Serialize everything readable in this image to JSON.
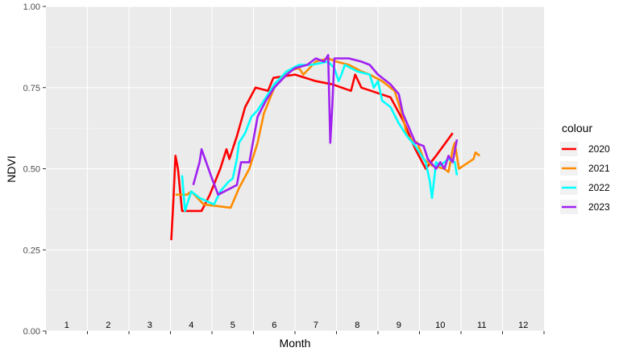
{
  "chart_data": {
    "type": "line",
    "xlabel": "Month",
    "ylabel": "NDVI",
    "ylim": [
      0,
      1
    ],
    "yticks": [
      0,
      0.25,
      0.5,
      0.75,
      1
    ],
    "ytick_labels": [
      "0.00",
      "0.25",
      "0.50",
      "0.75",
      "1.00"
    ],
    "month_labels": [
      "1",
      "2",
      "3",
      "4",
      "5",
      "6",
      "7",
      "8",
      "9",
      "10",
      "11",
      "12"
    ],
    "xlim": [
      0.5,
      12.5
    ],
    "grid": true,
    "background": "#ebebeb",
    "legend": {
      "title": "colour",
      "placement": "right"
    },
    "series": [
      {
        "name": "2020",
        "color": "#ff0000",
        "points": [
          [
            3.52,
            0.28
          ],
          [
            3.57,
            0.4
          ],
          [
            3.62,
            0.54
          ],
          [
            3.68,
            0.5
          ],
          [
            3.78,
            0.37
          ],
          [
            4.0,
            0.37
          ],
          [
            4.25,
            0.37
          ],
          [
            4.45,
            0.42
          ],
          [
            4.7,
            0.5
          ],
          [
            4.85,
            0.56
          ],
          [
            4.92,
            0.53
          ],
          [
            5.1,
            0.6
          ],
          [
            5.3,
            0.69
          ],
          [
            5.55,
            0.75
          ],
          [
            5.85,
            0.74
          ],
          [
            5.98,
            0.78
          ],
          [
            6.5,
            0.79
          ],
          [
            7.0,
            0.77
          ],
          [
            7.4,
            0.76
          ],
          [
            7.85,
            0.74
          ],
          [
            7.95,
            0.79
          ],
          [
            8.1,
            0.75
          ],
          [
            8.8,
            0.72
          ],
          [
            9.1,
            0.65
          ],
          [
            9.4,
            0.56
          ],
          [
            9.65,
            0.5
          ],
          [
            9.9,
            0.54
          ],
          [
            10.3,
            0.61
          ]
        ]
      },
      {
        "name": "2021",
        "color": "#ff8c00",
        "points": [
          [
            3.62,
            0.42
          ],
          [
            3.9,
            0.42
          ],
          [
            4.0,
            0.43
          ],
          [
            4.3,
            0.39
          ],
          [
            4.95,
            0.38
          ],
          [
            5.15,
            0.44
          ],
          [
            5.4,
            0.5
          ],
          [
            5.6,
            0.58
          ],
          [
            5.75,
            0.67
          ],
          [
            6.0,
            0.75
          ],
          [
            6.3,
            0.8
          ],
          [
            6.6,
            0.81
          ],
          [
            6.7,
            0.79
          ],
          [
            7.0,
            0.83
          ],
          [
            7.3,
            0.84
          ],
          [
            7.5,
            0.83
          ],
          [
            7.8,
            0.82
          ],
          [
            8.1,
            0.8
          ],
          [
            8.3,
            0.79
          ],
          [
            8.6,
            0.77
          ],
          [
            8.9,
            0.74
          ],
          [
            9.1,
            0.66
          ],
          [
            9.2,
            0.6
          ],
          [
            9.45,
            0.58
          ],
          [
            9.6,
            0.53
          ],
          [
            9.8,
            0.51
          ],
          [
            10.1,
            0.5
          ],
          [
            10.2,
            0.49
          ],
          [
            10.3,
            0.56
          ],
          [
            10.35,
            0.58
          ],
          [
            10.45,
            0.5
          ],
          [
            10.8,
            0.53
          ],
          [
            10.85,
            0.55
          ],
          [
            10.95,
            0.54
          ]
        ]
      },
      {
        "name": "2022",
        "color": "#00ffff",
        "points": [
          [
            3.78,
            0.48
          ],
          [
            3.85,
            0.37
          ],
          [
            4.0,
            0.43
          ],
          [
            4.2,
            0.41
          ],
          [
            4.55,
            0.39
          ],
          [
            4.7,
            0.43
          ],
          [
            4.9,
            0.46
          ],
          [
            5.0,
            0.47
          ],
          [
            5.1,
            0.53
          ],
          [
            5.15,
            0.58
          ],
          [
            5.3,
            0.61
          ],
          [
            5.45,
            0.66
          ],
          [
            5.6,
            0.68
          ],
          [
            5.75,
            0.71
          ],
          [
            6.0,
            0.76
          ],
          [
            6.3,
            0.8
          ],
          [
            6.6,
            0.82
          ],
          [
            6.9,
            0.82
          ],
          [
            7.3,
            0.83
          ],
          [
            7.45,
            0.81
          ],
          [
            7.55,
            0.77
          ],
          [
            7.62,
            0.79
          ],
          [
            7.7,
            0.82
          ],
          [
            8.0,
            0.8
          ],
          [
            8.3,
            0.79
          ],
          [
            8.4,
            0.75
          ],
          [
            8.5,
            0.77
          ],
          [
            8.6,
            0.71
          ],
          [
            8.8,
            0.69
          ],
          [
            9.0,
            0.64
          ],
          [
            9.2,
            0.6
          ],
          [
            9.4,
            0.57
          ],
          [
            9.65,
            0.52
          ],
          [
            9.75,
            0.46
          ],
          [
            9.8,
            0.41
          ],
          [
            9.9,
            0.52
          ],
          [
            10.0,
            0.51
          ],
          [
            10.2,
            0.53
          ],
          [
            10.35,
            0.52
          ],
          [
            10.4,
            0.48
          ]
        ]
      },
      {
        "name": "2023",
        "color": "#a020f0",
        "points": [
          [
            4.05,
            0.45
          ],
          [
            4.2,
            0.52
          ],
          [
            4.25,
            0.56
          ],
          [
            4.5,
            0.47
          ],
          [
            4.65,
            0.42
          ],
          [
            4.8,
            0.43
          ],
          [
            5.1,
            0.45
          ],
          [
            5.2,
            0.52
          ],
          [
            5.4,
            0.52
          ],
          [
            5.6,
            0.66
          ],
          [
            5.8,
            0.71
          ],
          [
            6.0,
            0.75
          ],
          [
            6.3,
            0.79
          ],
          [
            6.5,
            0.81
          ],
          [
            6.8,
            0.82
          ],
          [
            7.0,
            0.84
          ],
          [
            7.2,
            0.83
          ],
          [
            7.3,
            0.85
          ],
          [
            7.35,
            0.58
          ],
          [
            7.4,
            0.7
          ],
          [
            7.45,
            0.84
          ],
          [
            7.8,
            0.84
          ],
          [
            8.1,
            0.83
          ],
          [
            8.3,
            0.82
          ],
          [
            8.5,
            0.79
          ],
          [
            8.8,
            0.76
          ],
          [
            9.0,
            0.73
          ],
          [
            9.1,
            0.67
          ],
          [
            9.2,
            0.64
          ],
          [
            9.4,
            0.58
          ],
          [
            9.6,
            0.57
          ],
          [
            9.7,
            0.53
          ],
          [
            9.9,
            0.5
          ],
          [
            10.0,
            0.52
          ],
          [
            10.1,
            0.5
          ],
          [
            10.2,
            0.54
          ],
          [
            10.3,
            0.52
          ],
          [
            10.4,
            0.59
          ]
        ]
      }
    ]
  }
}
